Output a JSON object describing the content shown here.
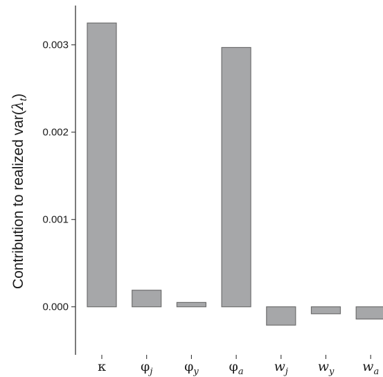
{
  "chart_data": {
    "type": "bar",
    "categories": [
      {
        "base": "κ",
        "sub": ""
      },
      {
        "base": "φ",
        "sub": "j"
      },
      {
        "base": "φ",
        "sub": "y"
      },
      {
        "base": "φ",
        "sub": "a"
      },
      {
        "base": "w",
        "sub": "j"
      },
      {
        "base": "w",
        "sub": "y"
      },
      {
        "base": "w",
        "sub": "a"
      }
    ],
    "values": [
      0.00325,
      0.00019,
      5e-05,
      0.00297,
      -0.00021,
      -8e-05,
      -0.00014
    ],
    "ylabel": {
      "text": "Contribution to realized var(",
      "symbol": "λ",
      "sub": "t",
      "close": ")"
    },
    "yticks": [
      0.0,
      0.001,
      0.002,
      0.003
    ],
    "ytick_labels": [
      "0.000",
      "0.001",
      "0.002",
      "0.003"
    ],
    "ylim": [
      -0.00055,
      0.00345
    ],
    "grid": false,
    "bar_color": "#a6a7a9",
    "bar_edge_color": "#6e6e6e"
  }
}
